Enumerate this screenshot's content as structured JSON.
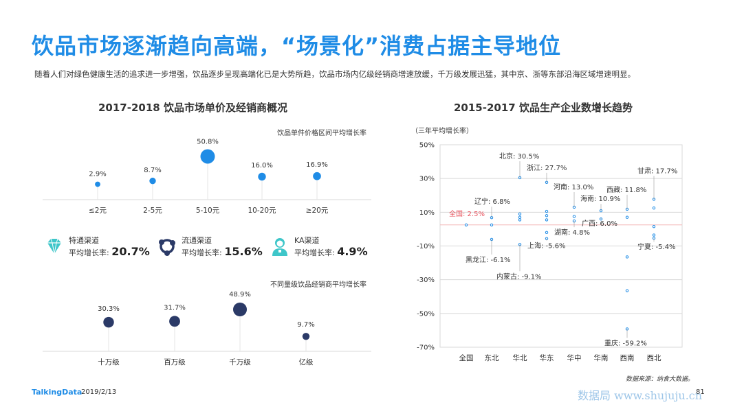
{
  "title": "饮品市场逐渐趋向高端，“场景化”消费占据主导地位",
  "subtitle": "随着人们对绿色健康生活的追求进一步增强，饮品逐步呈现高端化已是大势所趋，饮品市场内亿级经销商增速放缓，千万级发展迅猛，其中京、浙等东部沿海区域增速明显。",
  "left_title": "2017-2018  饮品市场单价及经销商概况",
  "right_title": "2015-2017  饮品生产企业数增长趋势",
  "price_note": "饮品单件价格区间平均增长率",
  "dealer_note": "不同量级饮品经销商平均增长率",
  "channels": [
    {
      "label": "特通渠道",
      "rate_label": "平均增长率:",
      "rate": "20.7%",
      "icon": "diamond-icon"
    },
    {
      "label": "流通渠道",
      "rate_label": "平均增长率:",
      "rate": "15.6%",
      "icon": "circulation-icon"
    },
    {
      "label": "KA渠道",
      "rate_label": "平均增长率:",
      "rate": "4.9%",
      "icon": "person-icon"
    }
  ],
  "footer": {
    "brand": "TalkingData",
    "date": "2019/2/13",
    "page": "81",
    "source": "数据来源：纳食大数据。",
    "watermark": "数据局 www.shujuju.cn"
  },
  "colors": {
    "accent": "#1f8ce6",
    "dark": "#2b3a67",
    "chan": "#3ec6c9",
    "ref": "#f4b6b6",
    "national": "#e8505b"
  },
  "chart_data": [
    {
      "type": "scatter",
      "name": "price",
      "categories": [
        "≤2元",
        "2-5元",
        "5-10元",
        "10-20元",
        "≥20元"
      ],
      "values": [
        2.9,
        8.7,
        50.8,
        16.0,
        16.9
      ],
      "labels": [
        "2.9%",
        "8.7%",
        "50.8%",
        "16.0%",
        "16.9%"
      ],
      "title": "饮品单件价格区间平均增长率"
    },
    {
      "type": "scatter",
      "name": "dealer",
      "categories": [
        "十万级",
        "百万级",
        "千万级",
        "亿级"
      ],
      "values": [
        30.3,
        31.7,
        48.9,
        9.7
      ],
      "labels": [
        "30.3%",
        "31.7%",
        "48.9%",
        "9.7%"
      ],
      "title": "不同量级饮品经销商平均增长率"
    },
    {
      "type": "scatter",
      "name": "region",
      "ylabel": "（三年平均增长率）",
      "ylim": [
        -70,
        50
      ],
      "yticks": [
        50,
        30,
        10,
        -10,
        -30,
        -50,
        -70
      ],
      "ytick_labels": [
        "50%",
        "30%",
        "10%",
        "-10%",
        "-30%",
        "-50%",
        "-70%"
      ],
      "categories": [
        "全国",
        "东北",
        "华北",
        "华东",
        "华中",
        "华南",
        "西南",
        "西北"
      ],
      "reference": 2.5,
      "series": [
        {
          "category": "全国",
          "values": [
            2.5
          ]
        },
        {
          "category": "东北",
          "values": [
            6.8,
            2.5,
            -6.1
          ]
        },
        {
          "category": "华北",
          "values": [
            30.5,
            9,
            7,
            5.5,
            -9.1
          ]
        },
        {
          "category": "华东",
          "values": [
            27.7,
            10.5,
            8,
            5.5,
            -2,
            -5.6
          ]
        },
        {
          "category": "华中",
          "values": [
            13.0,
            7.5,
            4.8
          ]
        },
        {
          "category": "华南",
          "values": [
            10.9,
            6.0
          ]
        },
        {
          "category": "西南",
          "values": [
            11.8,
            7,
            -16.5,
            -36.5,
            -59.2
          ]
        },
        {
          "category": "西北",
          "values": [
            17.7,
            12.5,
            1.5,
            -3.5,
            -5.4
          ]
        }
      ],
      "annotations": [
        {
          "text": "北京: 30.5%",
          "category": "华北",
          "value": 30.5
        },
        {
          "text": "浙江: 27.7%",
          "category": "华东",
          "value": 27.7
        },
        {
          "text": "河南: 13.0%",
          "category": "华中",
          "value": 13.0
        },
        {
          "text": "甘肃: 17.7%",
          "category": "西北",
          "value": 17.7
        },
        {
          "text": "西藏: 11.8%",
          "category": "西南",
          "value": 11.8
        },
        {
          "text": "海南: 10.9%",
          "category": "华南",
          "value": 10.9
        },
        {
          "text": "辽宁: 6.8%",
          "category": "东北",
          "value": 6.8
        },
        {
          "text": "全国: 2.5%",
          "category": "全国",
          "value": 2.5
        },
        {
          "text": "广西: 6.0%",
          "category": "华南",
          "value": 6.0
        },
        {
          "text": "湖南: 4.8%",
          "category": "华中",
          "value": 4.8
        },
        {
          "text": "上海: -5.6%",
          "category": "华东",
          "value": -5.6
        },
        {
          "text": "黑龙江: -6.1%",
          "category": "东北",
          "value": -6.1
        },
        {
          "text": "内蒙古: -9.1%",
          "category": "华北",
          "value": -9.1
        },
        {
          "text": "宁夏: -5.4%",
          "category": "西北",
          "value": -5.4
        },
        {
          "text": "重庆: -59.2%",
          "category": "西南",
          "value": -59.2
        }
      ]
    }
  ]
}
